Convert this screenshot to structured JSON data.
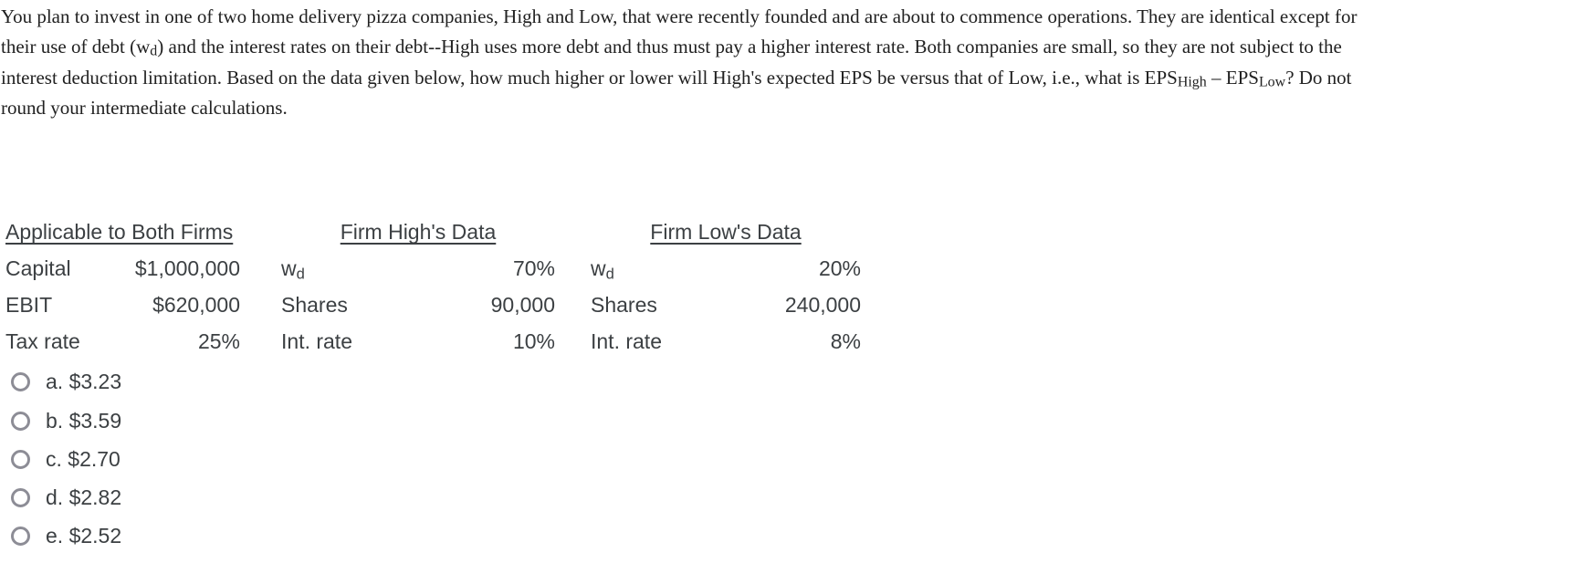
{
  "question": {
    "paragraph": [
      {
        "text": "You plan to invest in one of two home delivery pizza companies, High and Low, that were recently founded and are about to commence operations. They are identical except for"
      },
      {
        "br": true
      },
      {
        "text": "their use of debt ("
      },
      {
        "text": "w"
      },
      {
        "text": "d",
        "sub": true
      },
      {
        "text": ") and the interest rates on their debt--High uses more debt and thus must pay a higher interest rate. Both companies are small, so they are not subject to the"
      },
      {
        "br": true
      },
      {
        "text": "interest deduction limitation. Based on the data given below, how much higher or lower will High's expected EPS be versus that of Low, i.e., what is EPS"
      },
      {
        "text": "High",
        "sub": true
      },
      {
        "text": " – EPS"
      },
      {
        "text": "Low",
        "sub": true
      },
      {
        "text": "? Do not"
      },
      {
        "br": true
      },
      {
        "text": "round your intermediate calculations."
      }
    ]
  },
  "table": {
    "groups": [
      {
        "header": "Applicable to Both Firms",
        "rows": [
          {
            "label": [
              {
                "text": "Capital"
              }
            ],
            "value": "$1,000,000"
          },
          {
            "label": [
              {
                "text": "EBIT"
              }
            ],
            "value": "$620,000"
          },
          {
            "label": [
              {
                "text": "Tax rate"
              }
            ],
            "value": "25%"
          }
        ]
      },
      {
        "header": "Firm High's Data",
        "rows": [
          {
            "label": [
              {
                "text": "w"
              },
              {
                "text": "d",
                "sub": true
              }
            ],
            "value": "70%"
          },
          {
            "label": [
              {
                "text": "Shares"
              }
            ],
            "value": "90,000"
          },
          {
            "label": [
              {
                "text": "Int. rate"
              }
            ],
            "value": "10%"
          }
        ]
      },
      {
        "header": "Firm Low's Data",
        "rows": [
          {
            "label": [
              {
                "text": "w"
              },
              {
                "text": "d",
                "sub": true
              }
            ],
            "value": "20%"
          },
          {
            "label": [
              {
                "text": "Shares"
              }
            ],
            "value": "240,000"
          },
          {
            "label": [
              {
                "text": "Int. rate"
              }
            ],
            "value": "8%"
          }
        ]
      }
    ]
  },
  "options": [
    {
      "id": "a",
      "label": "a. $3.23",
      "selected": false
    },
    {
      "id": "b",
      "label": "b. $3.59",
      "selected": false
    },
    {
      "id": "c",
      "label": "c. $2.70",
      "selected": false
    },
    {
      "id": "d",
      "label": "d. $2.82",
      "selected": false
    },
    {
      "id": "e",
      "label": "e. $2.52",
      "selected": false
    }
  ],
  "colors": {
    "paragraph": "#212121",
    "table": "#3c4043",
    "radio": "#8d8d96",
    "background": "#ffffff"
  }
}
